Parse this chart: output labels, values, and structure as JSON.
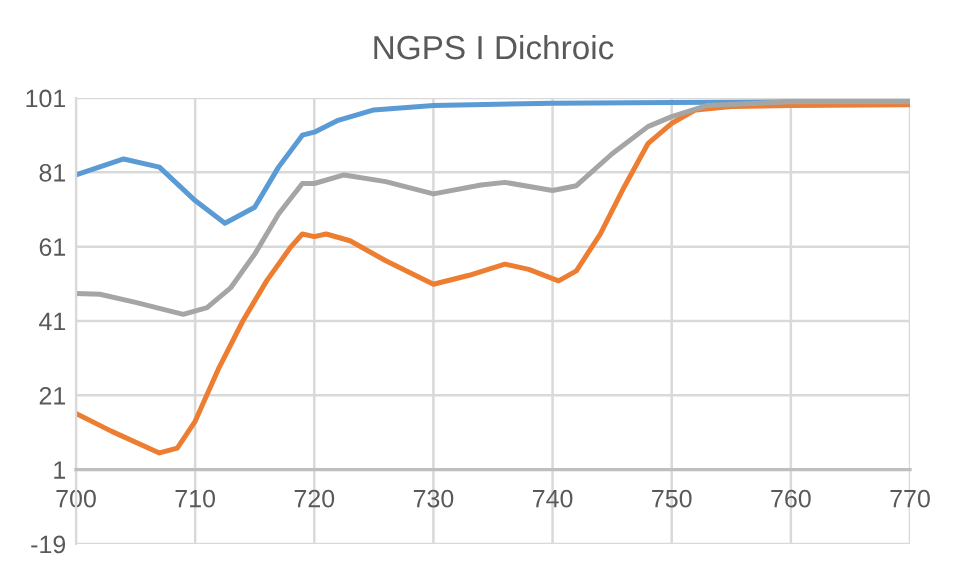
{
  "chart_data": {
    "type": "line",
    "title": "NGPS I Dichroic",
    "xlim": [
      700,
      770
    ],
    "xticks": [
      700,
      710,
      720,
      730,
      740,
      750,
      760,
      770
    ],
    "ylim": [
      -19,
      101
    ],
    "yticks": [
      -19,
      1,
      21,
      41,
      61,
      81,
      101
    ],
    "grid": true,
    "marker": "none",
    "line_style": "solid",
    "series": [
      {
        "color": "#5b9bd5",
        "x": [
          700,
          704,
          707,
          710,
          712.5,
          715,
          717,
          719,
          720,
          722,
          725,
          730,
          740,
          750,
          760,
          770
        ],
        "values": [
          80.3,
          84.6,
          82.4,
          73.4,
          67.3,
          71.6,
          82.4,
          91,
          91.8,
          95,
          97.8,
          99,
          99.6,
          99.8,
          100,
          100
        ]
      },
      {
        "color": "#ed7d31",
        "x": [
          700,
          703,
          707,
          708.5,
          710,
          712,
          714,
          716,
          718,
          719,
          720,
          721,
          723,
          726,
          730,
          733,
          736,
          738,
          740.5,
          742,
          744,
          746,
          748,
          750,
          752,
          755,
          760,
          770
        ],
        "values": [
          16.1,
          11.3,
          5.5,
          6.8,
          14,
          28.4,
          41,
          51.8,
          60.8,
          64.4,
          63.7,
          64.4,
          62.6,
          57.2,
          50.9,
          53.3,
          56.3,
          54.9,
          51.8,
          54.5,
          64.4,
          77,
          88.7,
          94.2,
          97.8,
          98.7,
          99,
          99.2
        ]
      },
      {
        "color": "#a5a5a5",
        "x": [
          700,
          702,
          705,
          709,
          711,
          713,
          715,
          717,
          719,
          720,
          722.5,
          726,
          730,
          734,
          736,
          740,
          742,
          745,
          748,
          750,
          753,
          760,
          770
        ],
        "values": [
          48.4,
          48.2,
          46,
          42.8,
          44.6,
          50,
          59,
          69.8,
          78,
          78,
          80.3,
          78.5,
          75.2,
          77.6,
          78.3,
          76.1,
          77.4,
          86,
          93.3,
          96,
          99,
          100,
          100
        ]
      }
    ]
  }
}
